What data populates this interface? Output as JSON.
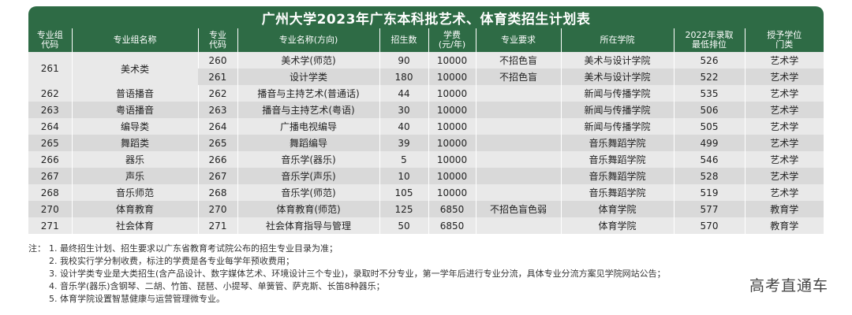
{
  "title": "广州大学2023年广东本科批艺术、体育类招生计划表",
  "headers": {
    "group_code": "专业组\n代码",
    "group_name": "专业组名称",
    "major_code": "专业\n代码",
    "major_name": "专业名称(方向)",
    "enrollment": "招生数",
    "tuition": "学费\n(元/年)",
    "requirement": "专业要求",
    "college": "所在学院",
    "rank_2022": "2022年录取\n最低排位",
    "degree": "授予学位\n门类"
  },
  "merged_group": {
    "group_code": "261",
    "group_name": "美术类"
  },
  "rows": [
    {
      "group_code": "",
      "group_name": "",
      "major_code": "260",
      "major_name": "美术学(师范)",
      "enrollment": "90",
      "tuition": "10000",
      "requirement": "不招色盲",
      "college": "美术与设计学院",
      "rank_2022": "526",
      "degree": "艺术学"
    },
    {
      "group_code": "",
      "group_name": "",
      "major_code": "261",
      "major_name": "设计学类",
      "enrollment": "180",
      "tuition": "10000",
      "requirement": "不招色盲",
      "college": "美术与设计学院",
      "rank_2022": "522",
      "degree": "艺术学"
    },
    {
      "group_code": "262",
      "group_name": "普语播音",
      "major_code": "262",
      "major_name": "播音与主持艺术(普通话)",
      "enrollment": "44",
      "tuition": "10000",
      "requirement": "",
      "college": "新闻与传播学院",
      "rank_2022": "535",
      "degree": "艺术学"
    },
    {
      "group_code": "263",
      "group_name": "粤语播音",
      "major_code": "263",
      "major_name": "播音与主持艺术(粤语)",
      "enrollment": "30",
      "tuition": "10000",
      "requirement": "",
      "college": "新闻与传播学院",
      "rank_2022": "506",
      "degree": "艺术学"
    },
    {
      "group_code": "264",
      "group_name": "编导类",
      "major_code": "264",
      "major_name": "广播电视编导",
      "enrollment": "40",
      "tuition": "10000",
      "requirement": "",
      "college": "新闻与传播学院",
      "rank_2022": "505",
      "degree": "艺术学"
    },
    {
      "group_code": "265",
      "group_name": "舞蹈类",
      "major_code": "265",
      "major_name": "舞蹈编导",
      "enrollment": "39",
      "tuition": "10000",
      "requirement": "",
      "college": "音乐舞蹈学院",
      "rank_2022": "499",
      "degree": "艺术学"
    },
    {
      "group_code": "266",
      "group_name": "器乐",
      "major_code": "266",
      "major_name": "音乐学(器乐)",
      "enrollment": "5",
      "tuition": "10000",
      "requirement": "",
      "college": "音乐舞蹈学院",
      "rank_2022": "546",
      "degree": "艺术学"
    },
    {
      "group_code": "267",
      "group_name": "声乐",
      "major_code": "267",
      "major_name": "音乐学(声乐)",
      "enrollment": "10",
      "tuition": "10000",
      "requirement": "",
      "college": "音乐舞蹈学院",
      "rank_2022": "528",
      "degree": "艺术学"
    },
    {
      "group_code": "268",
      "group_name": "音乐师范",
      "major_code": "268",
      "major_name": "音乐学(师范)",
      "enrollment": "105",
      "tuition": "10000",
      "requirement": "",
      "college": "音乐舞蹈学院",
      "rank_2022": "519",
      "degree": "艺术学"
    },
    {
      "group_code": "270",
      "group_name": "体育教育",
      "major_code": "270",
      "major_name": "体育教育(师范)",
      "enrollment": "125",
      "tuition": "6850",
      "requirement": "不招色盲色弱",
      "college": "体育学院",
      "rank_2022": "577",
      "degree": "教育学"
    },
    {
      "group_code": "271",
      "group_name": "社会体育",
      "major_code": "271",
      "major_name": "社会体育指导与管理",
      "enrollment": "50",
      "tuition": "6850",
      "requirement": "",
      "college": "体育学院",
      "rank_2022": "570",
      "degree": "教育学"
    }
  ],
  "notes": {
    "prefix": "注：",
    "items": [
      "1. 最终招生计划、招生要求以广东省教育考试院公布的招生专业目录为准；",
      "2. 我校实行学分制收费，标注的学费是各专业每学年预收费用；",
      "3. 设计学类专业是大类招生(含产品设计、数字媒体艺术、环境设计三个专业)，录取时不分专业，第一学年后进行专业分流，具体专业分流方案见学院网站公告；",
      "4. 音乐学(器乐)含钢琴、二胡、竹笛、琵琶、小提琴、单簧管、萨克斯、长笛8种器乐；",
      "5. 体育学院设置智慧健康与运营管理微专业。"
    ]
  },
  "watermark": "高考直通车",
  "colors": {
    "header_green": "#2e6b45",
    "row_light": "#e9e9e9",
    "row_dark": "#d9d9d9"
  }
}
